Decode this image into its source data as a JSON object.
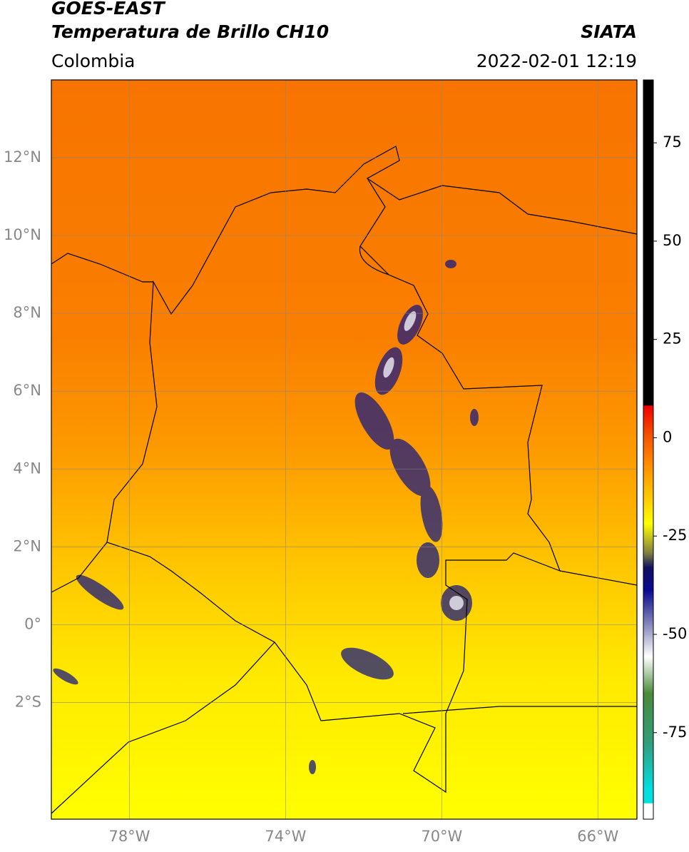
{
  "header": {
    "title": "GOES-EAST",
    "subtitle": "Temperatura de Brillo CH10",
    "source": "SIATA",
    "region": "Colombia",
    "timestamp": "2022-02-01 12:19"
  },
  "map": {
    "lonlim": [
      -80,
      -65
    ],
    "latlim": [
      -5,
      14
    ],
    "lat_ticks": [
      {
        "value": 12,
        "label": "12°N"
      },
      {
        "value": 10,
        "label": "10°N"
      },
      {
        "value": 8,
        "label": "8°N"
      },
      {
        "value": 6,
        "label": "6°N"
      },
      {
        "value": 4,
        "label": "4°N"
      },
      {
        "value": 2,
        "label": "2°N"
      },
      {
        "value": 0,
        "label": "0°"
      },
      {
        "value": -2,
        "label": "2°S"
      }
    ],
    "lon_ticks": [
      {
        "value": -78,
        "label": "78°W"
      },
      {
        "value": -74,
        "label": "74°W"
      },
      {
        "value": -70,
        "label": "70°W"
      },
      {
        "value": -66,
        "label": "66°W"
      }
    ],
    "grid": true
  },
  "colorbar": {
    "lim": [
      -97,
      91
    ],
    "ticks": [
      75,
      50,
      25,
      0,
      -25,
      -50,
      -75
    ]
  }
}
